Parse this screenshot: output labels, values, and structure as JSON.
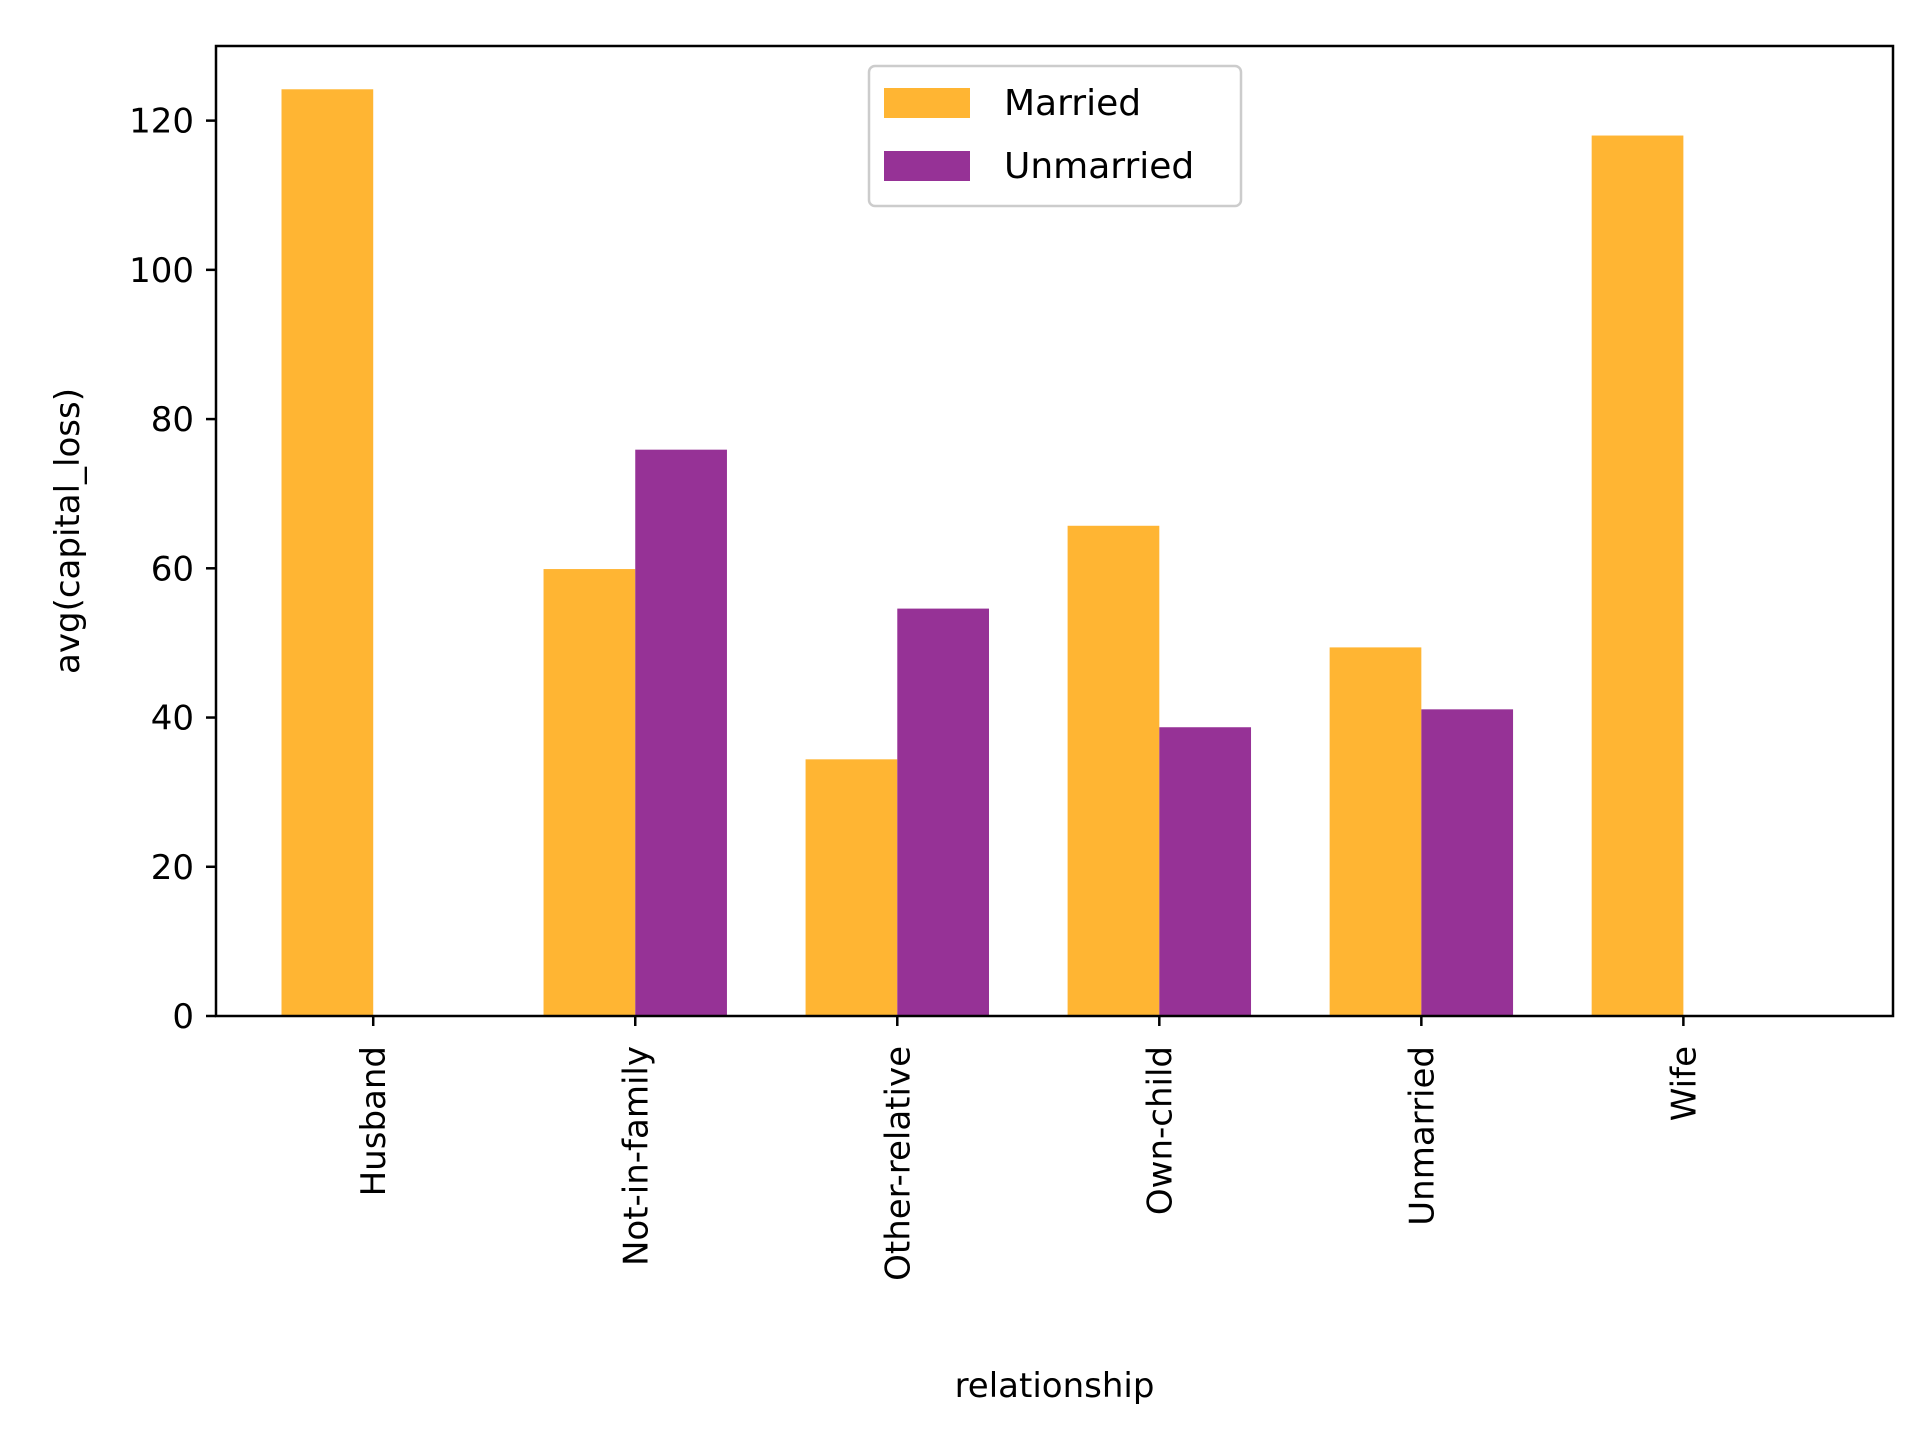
{
  "chart_data": {
    "type": "bar",
    "title": "",
    "xlabel": "relationship",
    "ylabel": "avg(capital_loss)",
    "categories": [
      "Husband",
      "Not-in-family",
      "Other-relative",
      "Own-child",
      "Unmarried",
      "Wife"
    ],
    "series": [
      {
        "name": "Married",
        "color": "#FFB533",
        "values": [
          124.2,
          59.9,
          34.4,
          65.7,
          49.4,
          118.0
        ]
      },
      {
        "name": "Unmarried",
        "color": "#963296",
        "values": [
          0,
          75.9,
          54.6,
          38.7,
          41.1,
          0
        ]
      }
    ],
    "ylim": [
      0,
      130
    ],
    "yticks": [
      0,
      20,
      40,
      60,
      80,
      100,
      120
    ],
    "grid": false,
    "legend_position": "upper center"
  }
}
